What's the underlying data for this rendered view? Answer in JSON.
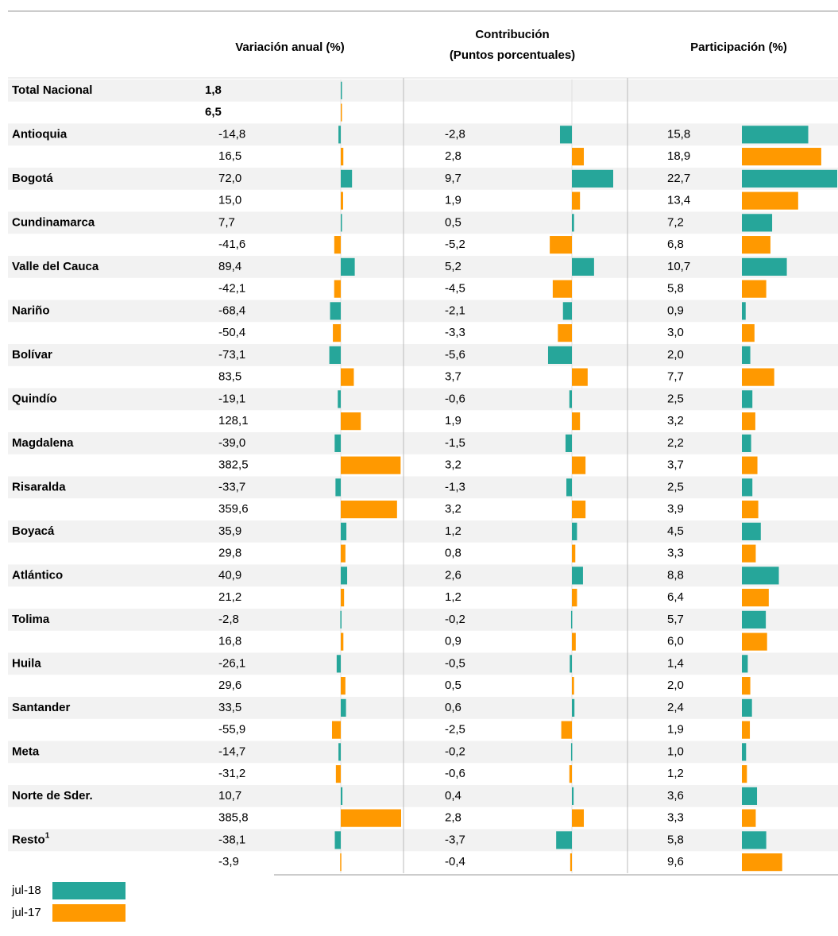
{
  "header": {
    "variacion": "Variación anual (%)",
    "contribucion": [
      "Contribución",
      "(Puntos porcentuales)"
    ],
    "participacion": "Participación (%)"
  },
  "legend": [
    {
      "name": "jul-18",
      "color": "#26a69a"
    },
    {
      "name": "jul-17",
      "color": "#ff9900"
    }
  ],
  "rows": [
    {
      "name": "Total Nacional",
      "variacion": [
        {
          "value": 1.8,
          "label": "1,8"
        },
        {
          "value": 6.5,
          "label": "6,5"
        }
      ]
    },
    {
      "name": "Antioquia",
      "variacion": [
        {
          "value": -14.8,
          "label": "-14,8"
        },
        {
          "value": 16.5,
          "label": "16,5"
        }
      ],
      "contribucion": [
        {
          "value": -2.8,
          "label": "-2,8"
        },
        {
          "value": 2.8,
          "label": "2,8"
        }
      ],
      "participacion": [
        {
          "value": 15.8,
          "label": "15,8"
        },
        {
          "value": 18.9,
          "label": "18,9"
        }
      ]
    },
    {
      "name": "Bogotá",
      "variacion": [
        {
          "value": 72.0,
          "label": "72,0"
        },
        {
          "value": 15.0,
          "label": "15,0"
        }
      ],
      "contribucion": [
        {
          "value": 9.7,
          "label": "9,7"
        },
        {
          "value": 1.9,
          "label": "1,9"
        }
      ],
      "participacion": [
        {
          "value": 22.7,
          "label": "22,7"
        },
        {
          "value": 13.4,
          "label": "13,4"
        }
      ]
    },
    {
      "name": "Cundinamarca",
      "variacion": [
        {
          "value": 7.7,
          "label": "7,7"
        },
        {
          "value": -41.6,
          "label": "-41,6"
        }
      ],
      "contribucion": [
        {
          "value": 0.5,
          "label": "0,5"
        },
        {
          "value": -5.2,
          "label": "-5,2"
        }
      ],
      "participacion": [
        {
          "value": 7.2,
          "label": "7,2"
        },
        {
          "value": 6.8,
          "label": "6,8"
        }
      ]
    },
    {
      "name": "Valle del Cauca",
      "variacion": [
        {
          "value": 89.4,
          "label": "89,4"
        },
        {
          "value": -42.1,
          "label": "-42,1"
        }
      ],
      "contribucion": [
        {
          "value": 5.2,
          "label": "5,2"
        },
        {
          "value": -4.5,
          "label": "-4,5"
        }
      ],
      "participacion": [
        {
          "value": 10.7,
          "label": "10,7"
        },
        {
          "value": 5.8,
          "label": "5,8"
        }
      ]
    },
    {
      "name": "Nariño",
      "variacion": [
        {
          "value": -68.4,
          "label": "-68,4"
        },
        {
          "value": -50.4,
          "label": "-50,4"
        }
      ],
      "contribucion": [
        {
          "value": -2.1,
          "label": "-2,1"
        },
        {
          "value": -3.3,
          "label": "-3,3"
        }
      ],
      "participacion": [
        {
          "value": 0.9,
          "label": "0,9"
        },
        {
          "value": 3.0,
          "label": "3,0"
        }
      ]
    },
    {
      "name": "Bolívar",
      "variacion": [
        {
          "value": -73.1,
          "label": "-73,1"
        },
        {
          "value": 83.5,
          "label": "83,5"
        }
      ],
      "contribucion": [
        {
          "value": -5.6,
          "label": "-5,6"
        },
        {
          "value": 3.7,
          "label": "3,7"
        }
      ],
      "participacion": [
        {
          "value": 2.0,
          "label": "2,0"
        },
        {
          "value": 7.7,
          "label": "7,7"
        }
      ]
    },
    {
      "name": "Quindío",
      "variacion": [
        {
          "value": -19.1,
          "label": "-19,1"
        },
        {
          "value": 128.1,
          "label": "128,1"
        }
      ],
      "contribucion": [
        {
          "value": -0.6,
          "label": "-0,6"
        },
        {
          "value": 1.9,
          "label": "1,9"
        }
      ],
      "participacion": [
        {
          "value": 2.5,
          "label": "2,5"
        },
        {
          "value": 3.2,
          "label": "3,2"
        }
      ]
    },
    {
      "name": "Magdalena",
      "variacion": [
        {
          "value": -39.0,
          "label": "-39,0"
        },
        {
          "value": 382.5,
          "label": "382,5"
        }
      ],
      "contribucion": [
        {
          "value": -1.5,
          "label": "-1,5"
        },
        {
          "value": 3.2,
          "label": "3,2"
        }
      ],
      "participacion": [
        {
          "value": 2.2,
          "label": "2,2"
        },
        {
          "value": 3.7,
          "label": "3,7"
        }
      ]
    },
    {
      "name": "Risaralda",
      "variacion": [
        {
          "value": -33.7,
          "label": "-33,7"
        },
        {
          "value": 359.6,
          "label": "359,6"
        }
      ],
      "contribucion": [
        {
          "value": -1.3,
          "label": "-1,3"
        },
        {
          "value": 3.2,
          "label": "3,2"
        }
      ],
      "participacion": [
        {
          "value": 2.5,
          "label": "2,5"
        },
        {
          "value": 3.9,
          "label": "3,9"
        }
      ]
    },
    {
      "name": "Boyacá",
      "variacion": [
        {
          "value": 35.9,
          "label": "35,9"
        },
        {
          "value": 29.8,
          "label": "29,8"
        }
      ],
      "contribucion": [
        {
          "value": 1.2,
          "label": "1,2"
        },
        {
          "value": 0.8,
          "label": "0,8"
        }
      ],
      "participacion": [
        {
          "value": 4.5,
          "label": "4,5"
        },
        {
          "value": 3.3,
          "label": "3,3"
        }
      ]
    },
    {
      "name": "Atlántico",
      "variacion": [
        {
          "value": 40.9,
          "label": "40,9"
        },
        {
          "value": 21.2,
          "label": "21,2"
        }
      ],
      "contribucion": [
        {
          "value": 2.6,
          "label": "2,6"
        },
        {
          "value": 1.2,
          "label": "1,2"
        }
      ],
      "participacion": [
        {
          "value": 8.8,
          "label": "8,8"
        },
        {
          "value": 6.4,
          "label": "6,4"
        }
      ]
    },
    {
      "name": "Tolima",
      "variacion": [
        {
          "value": -2.8,
          "label": "-2,8"
        },
        {
          "value": 16.8,
          "label": "16,8"
        }
      ],
      "contribucion": [
        {
          "value": -0.2,
          "label": "-0,2"
        },
        {
          "value": 0.9,
          "label": "0,9"
        }
      ],
      "participacion": [
        {
          "value": 5.7,
          "label": "5,7"
        },
        {
          "value": 6.0,
          "label": "6,0"
        }
      ]
    },
    {
      "name": "Huila",
      "variacion": [
        {
          "value": -26.1,
          "label": "-26,1"
        },
        {
          "value": 29.6,
          "label": "29,6"
        }
      ],
      "contribucion": [
        {
          "value": -0.5,
          "label": "-0,5"
        },
        {
          "value": 0.5,
          "label": "0,5"
        }
      ],
      "participacion": [
        {
          "value": 1.4,
          "label": "1,4"
        },
        {
          "value": 2.0,
          "label": "2,0"
        }
      ]
    },
    {
      "name": "Santander",
      "variacion": [
        {
          "value": 33.5,
          "label": "33,5"
        },
        {
          "value": -55.9,
          "label": "-55,9"
        }
      ],
      "contribucion": [
        {
          "value": 0.6,
          "label": "0,6"
        },
        {
          "value": -2.5,
          "label": "-2,5"
        }
      ],
      "participacion": [
        {
          "value": 2.4,
          "label": "2,4"
        },
        {
          "value": 1.9,
          "label": "1,9"
        }
      ]
    },
    {
      "name": "Meta",
      "variacion": [
        {
          "value": -14.7,
          "label": "-14,7"
        },
        {
          "value": -31.2,
          "label": "-31,2"
        }
      ],
      "contribucion": [
        {
          "value": -0.2,
          "label": "-0,2"
        },
        {
          "value": -0.6,
          "label": "-0,6"
        }
      ],
      "participacion": [
        {
          "value": 1.0,
          "label": "1,0"
        },
        {
          "value": 1.2,
          "label": "1,2"
        }
      ]
    },
    {
      "name": "Norte de Sder.",
      "variacion": [
        {
          "value": 10.7,
          "label": "10,7"
        },
        {
          "value": 385.8,
          "label": "385,8"
        }
      ],
      "contribucion": [
        {
          "value": 0.4,
          "label": "0,4"
        },
        {
          "value": 2.8,
          "label": "2,8"
        }
      ],
      "participacion": [
        {
          "value": 3.6,
          "label": "3,6"
        },
        {
          "value": 3.3,
          "label": "3,3"
        }
      ]
    },
    {
      "name": "Resto",
      "note": "1",
      "variacion": [
        {
          "value": -38.1,
          "label": "-38,1"
        },
        {
          "value": -3.9,
          "label": "-3,9"
        }
      ],
      "contribucion": [
        {
          "value": -3.7,
          "label": "-3,7"
        },
        {
          "value": -0.4,
          "label": "-0,4"
        }
      ],
      "participacion": [
        {
          "value": 5.8,
          "label": "5,8"
        },
        {
          "value": 9.6,
          "label": "9,6"
        }
      ]
    }
  ]
}
